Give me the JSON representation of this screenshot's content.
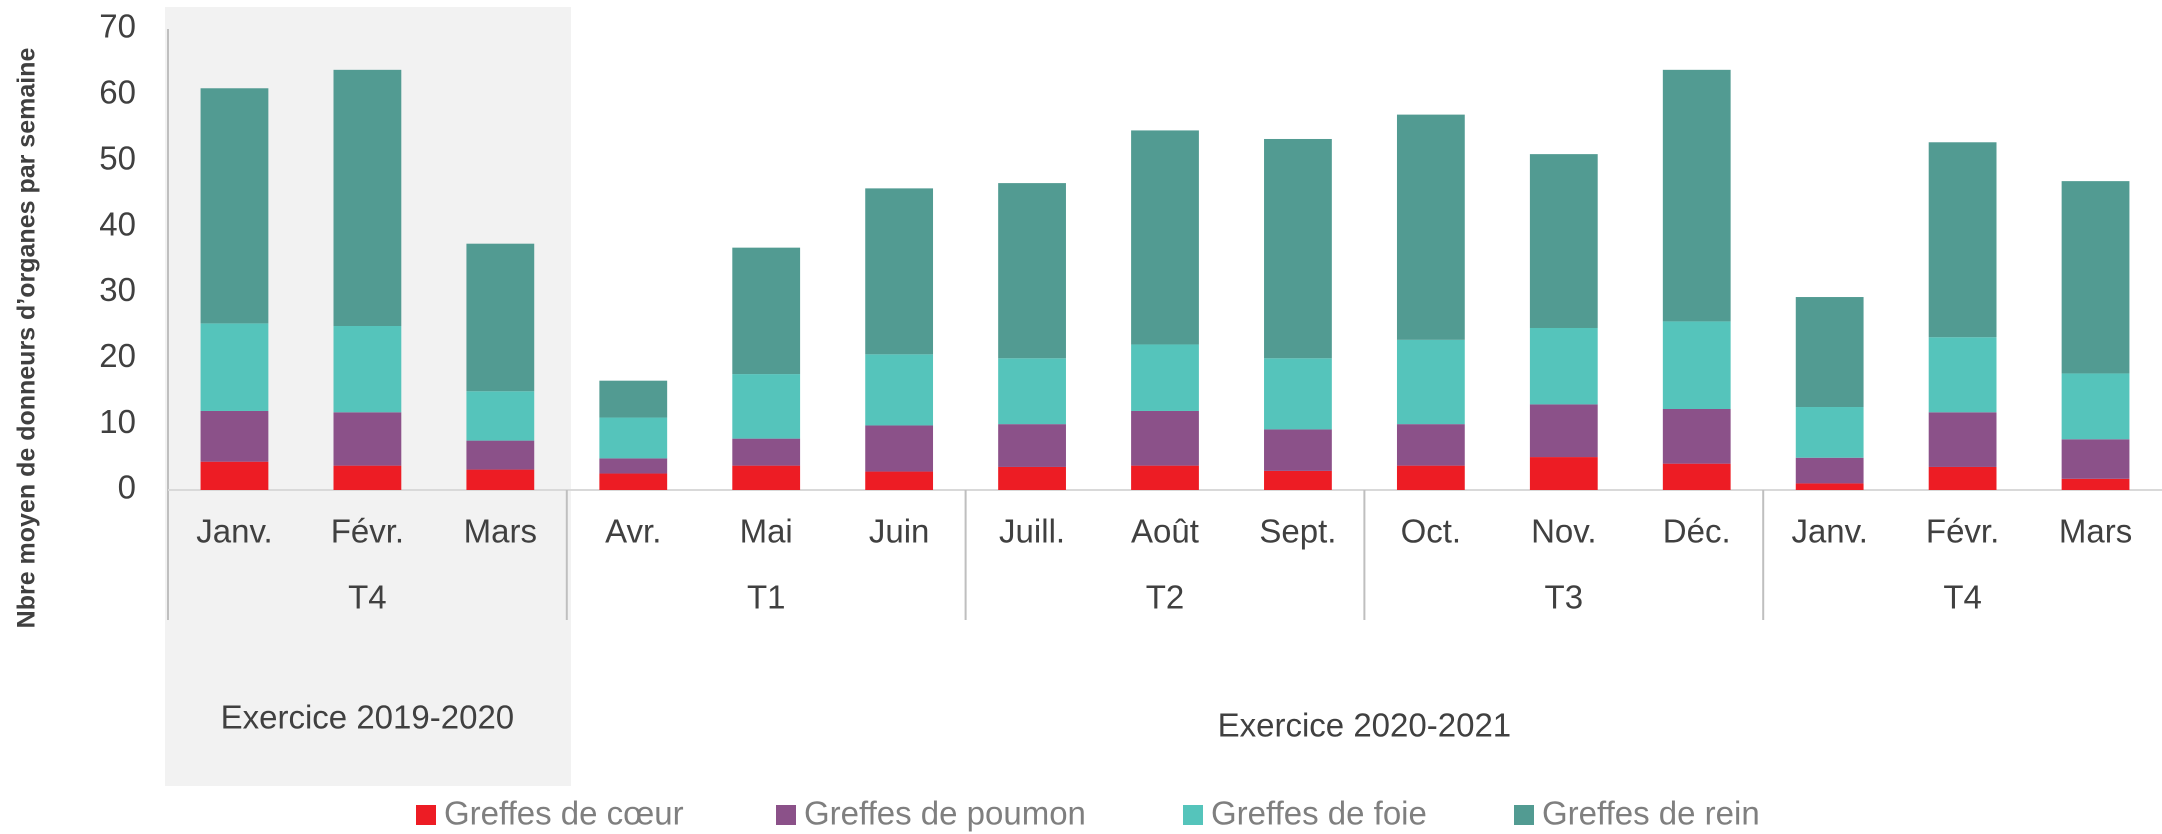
{
  "chart_data": {
    "type": "stacked_bar",
    "y_label": "Nbre moyen de donneurs d’organes par semaine",
    "categories": [
      "Janv.",
      "Févr.",
      "Mars",
      "Avr.",
      "Mai",
      "Juin",
      "Juill.",
      "Août",
      "Sept.",
      "Oct.",
      "Nov.",
      "Déc.",
      "Janv.",
      "Févr.",
      "Mars"
    ],
    "quarter_groups": [
      {
        "label": "T4",
        "count": 3
      },
      {
        "label": "T1",
        "count": 3
      },
      {
        "label": "T2",
        "count": 3
      },
      {
        "label": "T3",
        "count": 3
      },
      {
        "label": "T4",
        "count": 3
      }
    ],
    "year_groups": [
      {
        "label": "Exercice 2019-2020",
        "count": 3
      },
      {
        "label": "Exercice 2020-2021",
        "count": 12
      }
    ],
    "series": [
      {
        "name": "Greffes de cœur",
        "color": "#ed1c24",
        "values": [
          4.3,
          3.7,
          3.1,
          2.5,
          3.7,
          2.8,
          3.5,
          3.7,
          2.9,
          3.7,
          5,
          4,
          1,
          3.5,
          1.7
        ]
      },
      {
        "name": "Greffes de poumon",
        "color": "#8b5189",
        "values": [
          7.7,
          8.1,
          4.4,
          2.3,
          4.1,
          7.0,
          6.5,
          8.3,
          6.3,
          6.3,
          8,
          8.3,
          3.9,
          8.3,
          6
        ]
      },
      {
        "name": "Greffes de foie",
        "color": "#55c4bb",
        "values": [
          13.3,
          13.1,
          7.5,
          6.2,
          9.8,
          10.8,
          10,
          10.1,
          10.8,
          12.8,
          11.6,
          13.3,
          7.7,
          11.4,
          10
        ]
      },
      {
        "name": "Greffes de rein",
        "color": "#529b92",
        "values": [
          35.7,
          38.9,
          22.4,
          5.6,
          19.2,
          25.2,
          26.6,
          32.5,
          33.3,
          34.2,
          26.4,
          38.2,
          16.7,
          29.6,
          29.2
        ]
      }
    ],
    "ylim": [
      0,
      70
    ],
    "yticks": [
      0,
      10,
      20,
      30,
      40,
      50,
      60,
      70
    ]
  }
}
